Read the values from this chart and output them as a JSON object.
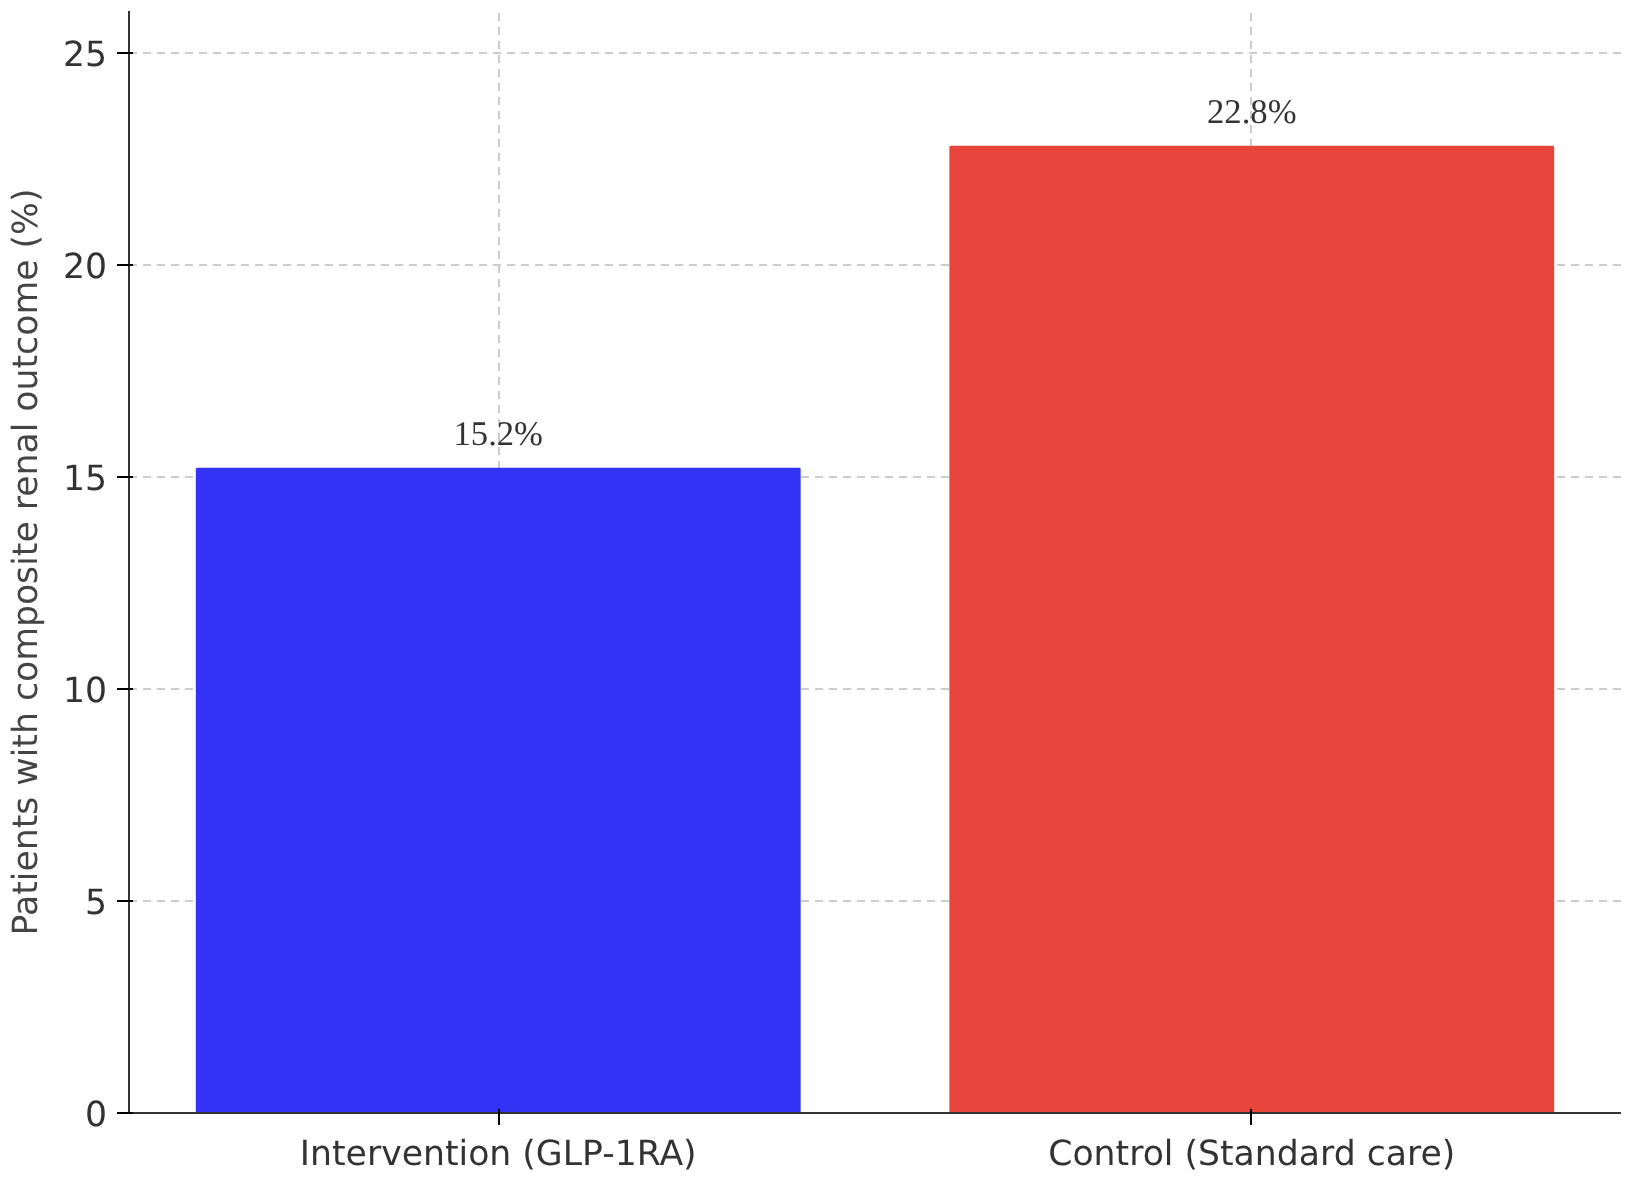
{
  "chart_data": {
    "type": "bar",
    "ylabel": "Patients with composite renal outcome (%)",
    "categories": [
      "Intervention (GLP-1RA)",
      "Control (Standard care)"
    ],
    "values": [
      15.2,
      22.8
    ],
    "colors": [
      "#3333f5",
      "#e8453c"
    ],
    "value_labels": [
      "15.2%",
      "22.8%"
    ],
    "ylim": [
      0,
      26
    ],
    "yticks": [
      0,
      5,
      10,
      15,
      20,
      25
    ],
    "grid": true
  }
}
